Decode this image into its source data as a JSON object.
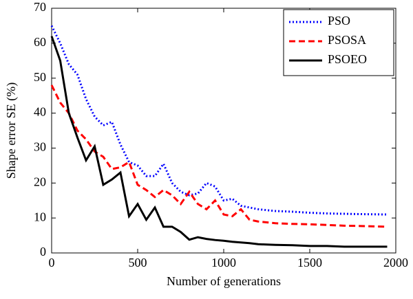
{
  "chart_data": {
    "type": "line",
    "x_label": "Number of generations",
    "y_label": "Shape error SE (%)",
    "x": [
      0,
      50,
      100,
      150,
      200,
      250,
      300,
      350,
      400,
      450,
      500,
      550,
      600,
      650,
      700,
      750,
      800,
      850,
      900,
      950,
      1000,
      1050,
      1100,
      1150,
      1200,
      1300,
      1400,
      1500,
      1600,
      1700,
      1800,
      1950
    ],
    "series": [
      {
        "name": "PSO",
        "color": "#0000ff",
        "style": "dotted",
        "values": [
          65,
          60,
          54,
          51,
          44,
          39,
          36.5,
          37.5,
          31,
          26,
          25,
          22,
          22,
          25.5,
          20,
          17.5,
          16.5,
          17,
          20,
          19,
          15,
          15.5,
          13.5,
          13,
          12.5,
          12,
          11.8,
          11.5,
          11.3,
          11.2,
          11.1,
          11
        ]
      },
      {
        "name": "PSOSA",
        "color": "#ff0000",
        "style": "dashed",
        "values": [
          48,
          43,
          40,
          35,
          32.5,
          29,
          27.5,
          24,
          24.5,
          26,
          19.5,
          18,
          16,
          18,
          16.5,
          14,
          17.5,
          14,
          12.5,
          15,
          11,
          10.5,
          12.5,
          9.5,
          9,
          8.5,
          8.3,
          8.2,
          8,
          7.8,
          7.7,
          7.5
        ]
      },
      {
        "name": "PSOEO",
        "color": "#000000",
        "style": "solid",
        "values": [
          62,
          55,
          40,
          33,
          26.5,
          30.5,
          19.5,
          21,
          23,
          10.5,
          14,
          9.5,
          13,
          7.5,
          7.5,
          6,
          3.8,
          4.5,
          4,
          3.7,
          3.5,
          3.2,
          3,
          2.8,
          2.5,
          2.3,
          2.2,
          2,
          2,
          1.8,
          1.8,
          1.8
        ]
      }
    ],
    "xlim": [
      0,
      2000
    ],
    "xticks": [
      0,
      500,
      1000,
      1500,
      2000
    ],
    "ylim": [
      0,
      70
    ],
    "yticks": [
      0,
      10,
      20,
      30,
      40,
      50,
      60,
      70
    ],
    "legend": "upper-right"
  }
}
